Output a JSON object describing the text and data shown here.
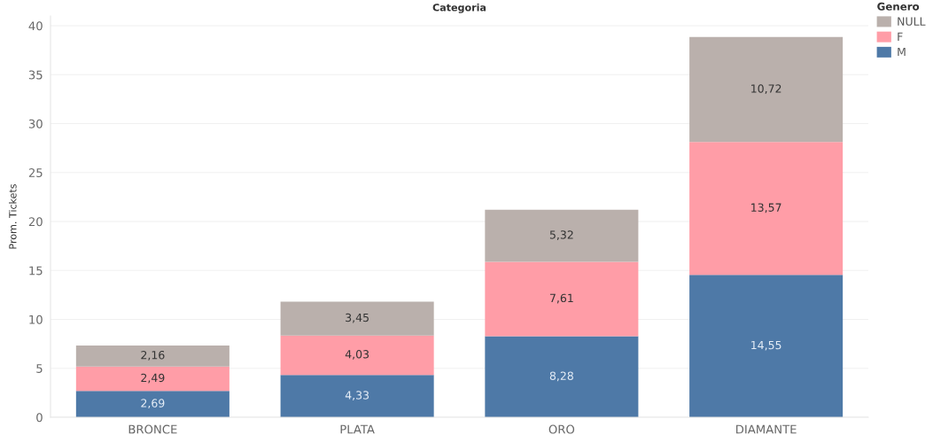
{
  "chart_data": {
    "type": "bar",
    "title": "Categoria",
    "ylabel": "Prom. Tickets",
    "legend_title": "Genero",
    "categories": [
      "BRONCE",
      "PLATA",
      "ORO",
      "DIAMANTE"
    ],
    "stacked": true,
    "series": [
      {
        "name": "M",
        "color": "#4e79a7",
        "values": [
          2.69,
          4.33,
          8.28,
          14.55
        ],
        "value_labels": [
          "2,69",
          "4,33",
          "8,28",
          "14,55"
        ]
      },
      {
        "name": "F",
        "color": "#ff9da7",
        "values": [
          2.49,
          4.03,
          7.61,
          13.57
        ],
        "value_labels": [
          "2,49",
          "4,03",
          "7,61",
          "13,57"
        ]
      },
      {
        "name": "NULL",
        "color": "#bab0ac",
        "values": [
          2.16,
          3.45,
          5.32,
          10.72
        ],
        "value_labels": [
          "2,16",
          "3,45",
          "5,32",
          "10,72"
        ]
      }
    ],
    "ylim": [
      0,
      41
    ],
    "yticks": [
      0,
      5,
      10,
      15,
      20,
      25,
      30,
      35,
      40
    ],
    "grid": "y",
    "legend": "top right"
  }
}
